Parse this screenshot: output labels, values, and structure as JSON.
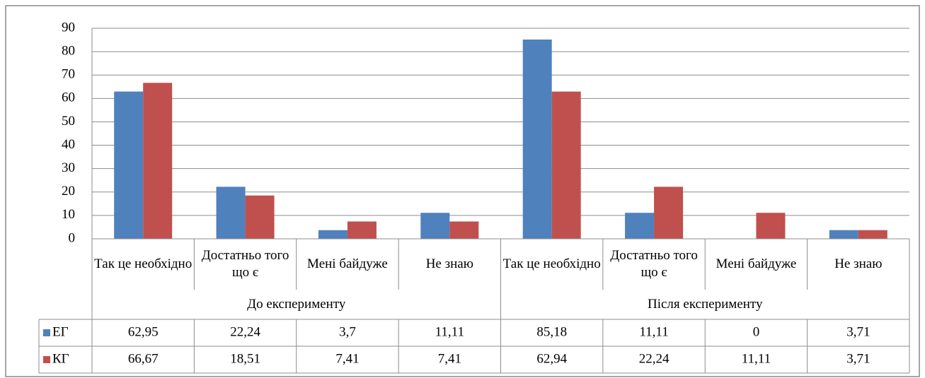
{
  "chart_data": {
    "type": "bar",
    "groups": [
      "До експерименту",
      "Після експерименту"
    ],
    "categories": [
      "Так це необхідно",
      "Достатньо того що є",
      "Мені байдуже",
      "Не знаю",
      "Так це необхідно",
      "Достатньо того що є",
      "Мені байдуже",
      "Не знаю"
    ],
    "series": [
      {
        "name": "ЕГ",
        "color": "#4f81bd",
        "values": [
          62.95,
          22.24,
          3.7,
          11.11,
          85.18,
          11.11,
          0,
          3.71
        ],
        "value_labels": [
          "62,95",
          "22,24",
          "3,7",
          "11,11",
          "85,18",
          "11,11",
          "0",
          "3,71"
        ]
      },
      {
        "name": "КГ",
        "color": "#c0504d",
        "values": [
          66.67,
          18.51,
          7.41,
          7.41,
          62.94,
          22.24,
          11.11,
          3.71
        ],
        "value_labels": [
          "66,67",
          "18,51",
          "7,41",
          "7,41",
          "62,94",
          "22,24",
          "11,11",
          "3,71"
        ]
      }
    ],
    "ylim": [
      0,
      90
    ],
    "yticks": [
      0,
      10,
      20,
      30,
      40,
      50,
      60,
      70,
      80,
      90
    ],
    "grid": true
  }
}
